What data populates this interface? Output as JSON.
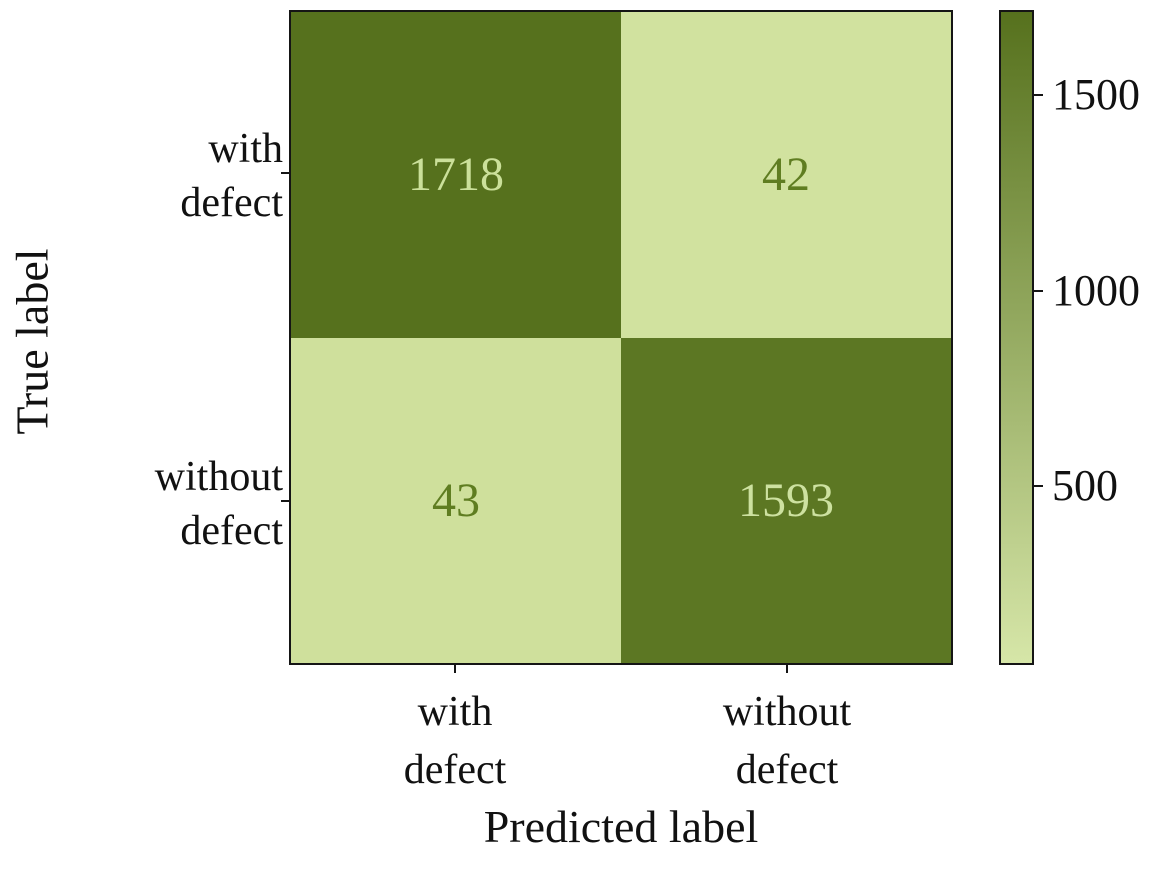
{
  "chart_data": {
    "type": "heatmap",
    "subtype": "confusion-matrix",
    "xlabel": "Predicted label",
    "ylabel": "True label",
    "x_categories": [
      "with defect",
      "without defect"
    ],
    "y_categories": [
      "with defect",
      "without defect"
    ],
    "x_tick_labels": [
      "with\ndefect",
      "without\ndefect"
    ],
    "y_tick_labels": [
      "with\ndefect",
      "without\ndefect"
    ],
    "matrix": [
      [
        1718,
        42
      ],
      [
        43,
        1593
      ]
    ],
    "cells": [
      {
        "row": "with defect",
        "col": "with defect",
        "value": "1718",
        "bg": "#56711d",
        "fg": "#cbe09a"
      },
      {
        "row": "with defect",
        "col": "without defect",
        "value": "42",
        "bg": "#d1e29f",
        "fg": "#5f7d21"
      },
      {
        "row": "without defect",
        "col": "with defect",
        "value": "43",
        "bg": "#cfe09c",
        "fg": "#5f7d21"
      },
      {
        "row": "without defect",
        "col": "without defect",
        "value": "1593",
        "bg": "#5c7723",
        "fg": "#cde1a0"
      }
    ],
    "colorbar": {
      "vmin": 42,
      "vmax": 1718,
      "ticks": [
        1500,
        1000,
        500
      ],
      "color_max": "#56711d",
      "color_min": "#d6e6a8"
    },
    "grid": false,
    "legend": "none",
    "background_color": "#ffffff",
    "border_color": "#151515"
  }
}
